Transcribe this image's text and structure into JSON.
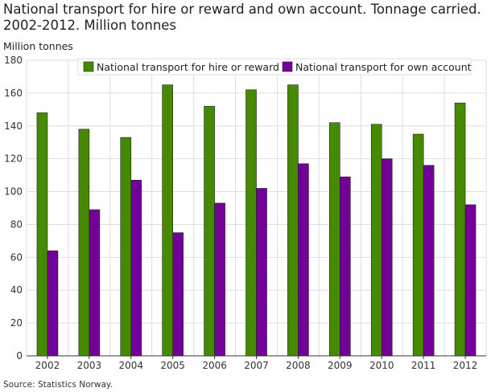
{
  "chart_data": {
    "type": "bar",
    "title": "National transport for hire or reward and own account. Tonnage carried. 2002-2012. Million tonnes",
    "ylabel": "Million tonnes",
    "xlabel": "",
    "ylim": [
      0,
      180
    ],
    "yticks": [
      0,
      20,
      40,
      60,
      80,
      100,
      120,
      140,
      160,
      180
    ],
    "grid": true,
    "legend": "top-right",
    "categories": [
      "2002",
      "2003",
      "2004",
      "2005",
      "2006",
      "2007",
      "2008",
      "2009",
      "2010",
      "2011",
      "2012"
    ],
    "series": [
      {
        "name": "National transport for hire or reward",
        "color": "#458A00",
        "values": [
          148,
          138,
          133,
          165,
          152,
          162,
          165,
          142,
          141,
          135,
          154
        ]
      },
      {
        "name": "National transport for own account",
        "color": "#730099",
        "values": [
          64,
          89,
          107,
          75,
          93,
          102,
          117,
          109,
          120,
          116,
          92
        ]
      }
    ],
    "source": "Source: Statistics Norway."
  }
}
